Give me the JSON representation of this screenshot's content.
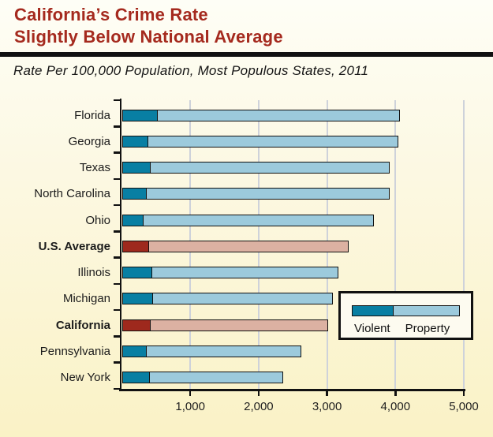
{
  "header": {
    "title_line1": "California’s Crime Rate",
    "title_line2": "Slightly Below National Average",
    "subtitle": "Rate Per 100,000 Population, Most Populous States, 2011"
  },
  "chart_data": {
    "type": "bar",
    "orientation": "horizontal",
    "stacked": true,
    "title": "California’s Crime Rate Slightly Below National Average",
    "subtitle": "Rate Per 100,000 Population, Most Populous States, 2011",
    "unit": "crimes per 100,000 population",
    "categories": [
      "Florida",
      "Georgia",
      "Texas",
      "North Carolina",
      "Ohio",
      "U.S. Average",
      "Illinois",
      "Michigan",
      "California",
      "Pennsylvania",
      "New York"
    ],
    "series": [
      {
        "name": "Violent",
        "values": [
          515,
          373,
          409,
          351,
          306,
          386,
          429,
          445,
          411,
          349,
          399
        ]
      },
      {
        "name": "Property",
        "values": [
          3531,
          3647,
          3479,
          3541,
          3361,
          2905,
          2709,
          2614,
          2583,
          2253,
          1932
        ]
      }
    ],
    "totals": [
      4046,
      4020,
      3888,
      3892,
      3667,
      3291,
      3138,
      3059,
      2994,
      2602,
      2331
    ],
    "highlight_categories": [
      "U.S. Average",
      "California"
    ],
    "xlim": [
      0,
      5000
    ],
    "x_tick_values": [
      1000,
      2000,
      3000,
      4000,
      5000
    ],
    "x_tick_labels": [
      "1,000",
      "2,000",
      "3,000",
      "4,000",
      "5,000"
    ],
    "grid": "vertical-gridlines-on",
    "legend": {
      "items": [
        "Violent",
        "Property"
      ],
      "position": "inside bottom-right"
    },
    "colors": {
      "violent": "#087fa3",
      "property": "#9ccadc",
      "violent_highlight": "#9e291d",
      "property_highlight": "#dcb1a2",
      "title": "#a52a1e",
      "axis": "#111111",
      "gridline": "#ced2da",
      "background_top": "#fefef6",
      "background_bottom": "#faf2c6",
      "legend_background": "#fdfbf0"
    }
  }
}
